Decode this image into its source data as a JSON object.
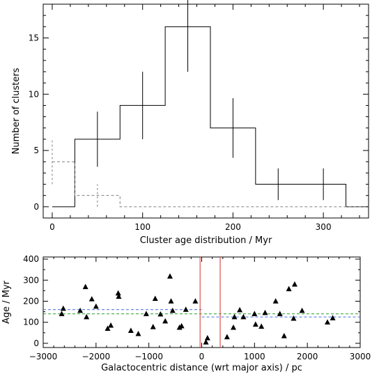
{
  "chart_data": [
    {
      "type": "histogram",
      "xlabel": "Cluster age distribution / Myr",
      "ylabel": "Number of clusters",
      "xlim": [
        -10,
        350
      ],
      "ylim": [
        -1,
        18
      ],
      "xticks": [
        0,
        100,
        200,
        300
      ],
      "yticks": [
        0,
        5,
        10,
        15
      ],
      "series": [
        {
          "style": "solid",
          "color": "#000000",
          "bin_edges": [
            0,
            25,
            75,
            125,
            175,
            225,
            325,
            350
          ],
          "counts": [
            0,
            6,
            9,
            16,
            7,
            2,
            0
          ]
        },
        {
          "style": "dashed",
          "color": "#808080",
          "bin_edges": [
            0,
            25,
            75,
            350
          ],
          "counts": [
            4,
            1,
            0
          ]
        }
      ],
      "error_bars": [
        {
          "x": 50,
          "y": 6,
          "err": 2.45,
          "style": "solid"
        },
        {
          "x": 100,
          "y": 9,
          "err": 3.0,
          "style": "solid"
        },
        {
          "x": 150,
          "y": 16,
          "err": 4.0,
          "style": "solid"
        },
        {
          "x": 200,
          "y": 7,
          "err": 2.65,
          "style": "solid"
        },
        {
          "x": 250,
          "y": 2,
          "err": 1.41,
          "style": "solid"
        },
        {
          "x": 300,
          "y": 2,
          "err": 1.41,
          "style": "solid"
        },
        {
          "x": 0,
          "y": 4,
          "err": 2.0,
          "style": "dashed"
        },
        {
          "x": 50,
          "y": 1,
          "err": 1.0,
          "style": "dashed"
        }
      ]
    },
    {
      "type": "scatter",
      "xlabel": "Galactocentric distance (wrt major axis) / pc",
      "ylabel": "Age / Myr",
      "xlim": [
        -3000,
        3000
      ],
      "ylim": [
        -20,
        410
      ],
      "xticks": [
        -3000,
        -2000,
        -1000,
        0,
        1000,
        2000,
        3000
      ],
      "yticks": [
        0,
        100,
        200,
        300,
        400
      ],
      "points": [
        {
          "x": -2650,
          "y": 140
        },
        {
          "x": -2620,
          "y": 165
        },
        {
          "x": -2300,
          "y": 155
        },
        {
          "x": -2200,
          "y": 268
        },
        {
          "x": -2180,
          "y": 125
        },
        {
          "x": -2080,
          "y": 210
        },
        {
          "x": -2000,
          "y": 175
        },
        {
          "x": -1780,
          "y": 70
        },
        {
          "x": -1720,
          "y": 85
        },
        {
          "x": -1580,
          "y": 238
        },
        {
          "x": -1570,
          "y": 222
        },
        {
          "x": -1340,
          "y": 60
        },
        {
          "x": -1200,
          "y": 45
        },
        {
          "x": -1050,
          "y": 140
        },
        {
          "x": -920,
          "y": 78
        },
        {
          "x": -880,
          "y": 212
        },
        {
          "x": -780,
          "y": 138
        },
        {
          "x": -690,
          "y": 105
        },
        {
          "x": -600,
          "y": 318
        },
        {
          "x": -580,
          "y": 200
        },
        {
          "x": -550,
          "y": 155
        },
        {
          "x": -420,
          "y": 75
        },
        {
          "x": -380,
          "y": 82
        },
        {
          "x": -300,
          "y": 160
        },
        {
          "x": -120,
          "y": 200
        },
        {
          "x": 80,
          "y": 5
        },
        {
          "x": 110,
          "y": 25
        },
        {
          "x": 480,
          "y": 30
        },
        {
          "x": 600,
          "y": 75
        },
        {
          "x": 620,
          "y": 125
        },
        {
          "x": 720,
          "y": 158
        },
        {
          "x": 790,
          "y": 125
        },
        {
          "x": 1000,
          "y": 140
        },
        {
          "x": 1020,
          "y": 90
        },
        {
          "x": 1130,
          "y": 80
        },
        {
          "x": 1200,
          "y": 145
        },
        {
          "x": 1400,
          "y": 200
        },
        {
          "x": 1480,
          "y": 140
        },
        {
          "x": 1560,
          "y": 35
        },
        {
          "x": 1650,
          "y": 258
        },
        {
          "x": 1740,
          "y": 118
        },
        {
          "x": 1760,
          "y": 280
        },
        {
          "x": 1900,
          "y": 155
        },
        {
          "x": 2380,
          "y": 100
        },
        {
          "x": 2480,
          "y": 120
        }
      ],
      "vertical_lines": [
        {
          "x": -30,
          "color": "#d9534f"
        },
        {
          "x": 350,
          "color": "#d9534f"
        }
      ],
      "horizontal_segments": [
        {
          "x0": -3000,
          "x1": 0,
          "y": 160,
          "color": "#4a6fe3",
          "style": "dashed"
        },
        {
          "x0": 0,
          "x1": 3000,
          "y": 125,
          "color": "#4a6fe3",
          "style": "dashed"
        },
        {
          "x0": -3000,
          "x1": 3000,
          "y": 140,
          "color": "#2ca02c",
          "style": "dashed"
        }
      ]
    }
  ]
}
